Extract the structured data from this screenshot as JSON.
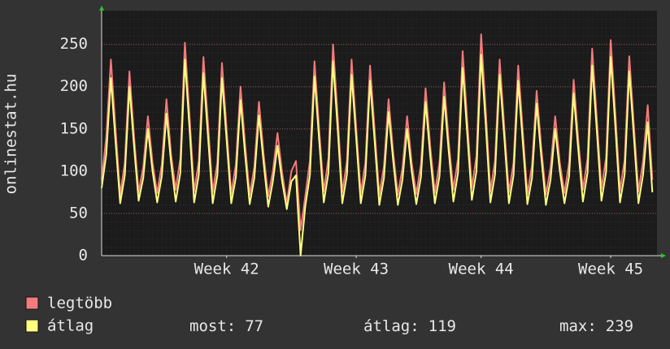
{
  "chart_data": {
    "type": "line",
    "y_label": "onlinestat.hu",
    "ylim": [
      0,
      290
    ],
    "yticks": [
      0,
      50,
      100,
      150,
      200,
      250
    ],
    "xlim": [
      0,
      120
    ],
    "xticks": [
      {
        "value": 27,
        "label": "Week 42"
      },
      {
        "value": 55,
        "label": "Week 43"
      },
      {
        "value": 82,
        "label": "Week 44"
      },
      {
        "value": 110,
        "label": "Week 45"
      }
    ],
    "grid": true,
    "series": [
      {
        "name": "legtöbb",
        "color": "#f47b7b",
        "values": [
          90,
          140,
          232,
          150,
          72,
          110,
          218,
          142,
          75,
          105,
          165,
          110,
          74,
          108,
          185,
          120,
          78,
          115,
          252,
          165,
          76,
          112,
          235,
          155,
          75,
          110,
          228,
          150,
          73,
          108,
          200,
          132,
          72,
          105,
          182,
          120,
          70,
          100,
          145,
          98,
          62,
          100,
          112,
          30,
          70,
          112,
          230,
          150,
          76,
          115,
          250,
          165,
          75,
          112,
          232,
          152,
          74,
          110,
          225,
          148,
          72,
          106,
          185,
          122,
          72,
          104,
          165,
          110,
          73,
          108,
          198,
          130,
          74,
          110,
          205,
          135,
          78,
          115,
          242,
          160,
          80,
          118,
          262,
          172,
          76,
          112,
          232,
          152,
          75,
          110,
          225,
          148,
          73,
          107,
          195,
          128,
          72,
          104,
          165,
          110,
          74,
          110,
          208,
          137,
          78,
          115,
          245,
          162,
          79,
          116,
          255,
          168,
          77,
          113,
          236,
          155,
          76,
          112,
          178,
          90
        ]
      },
      {
        "name": "átlag",
        "color": "#ffff80",
        "values": [
          80,
          120,
          210,
          135,
          62,
          95,
          200,
          130,
          65,
          92,
          150,
          100,
          63,
          94,
          168,
          110,
          64,
          98,
          232,
          150,
          63,
          96,
          216,
          140,
          62,
          95,
          210,
          137,
          62,
          93,
          184,
          120,
          61,
          92,
          166,
          110,
          58,
          88,
          130,
          88,
          55,
          88,
          95,
          0,
          58,
          95,
          212,
          137,
          63,
          98,
          230,
          150,
          62,
          96,
          214,
          140,
          62,
          95,
          207,
          135,
          60,
          92,
          170,
          112,
          60,
          90,
          150,
          100,
          61,
          93,
          182,
          118,
          62,
          94,
          188,
          123,
          64,
          98,
          222,
          145,
          66,
          100,
          238,
          155,
          63,
          96,
          214,
          140,
          62,
          95,
          207,
          135,
          61,
          92,
          180,
          117,
          60,
          90,
          150,
          100,
          62,
          94,
          192,
          125,
          64,
          98,
          225,
          148,
          65,
          99,
          235,
          153,
          63,
          96,
          218,
          142,
          62,
          96,
          158,
          75
        ]
      }
    ],
    "stats": [
      {
        "label": "most:",
        "value": 77
      },
      {
        "label": "átlag:",
        "value": 119
      },
      {
        "label": "max:",
        "value": 239
      }
    ]
  }
}
